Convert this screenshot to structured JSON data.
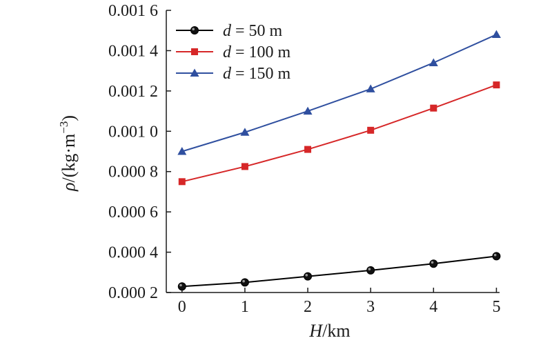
{
  "chart_data": {
    "type": "line",
    "x": [
      0,
      1,
      2,
      3,
      4,
      5
    ],
    "xlim": [
      -0.25,
      5.05
    ],
    "ylim": [
      0.0002,
      0.0016
    ],
    "xticks": [
      "0",
      "1",
      "2",
      "3",
      "4",
      "5"
    ],
    "yticks": [
      "0.000 2",
      "0.000 4",
      "0.000 6",
      "0.000 8",
      "0.001 0",
      "0.001 2",
      "0.001 4",
      "0.001 6"
    ],
    "ytick_values": [
      0.0002,
      0.0004,
      0.0006,
      0.0008,
      0.001,
      0.0012,
      0.0014,
      0.0016
    ],
    "xlabel": "H/km",
    "ylabel": "ρ/(kg·m⁻³)",
    "grid": false,
    "legend_position": "top-left",
    "series": [
      {
        "name": "d = 50 m",
        "name_var": "d",
        "name_rest": " = 50 m",
        "color": "#000000",
        "marker": "circle",
        "values": [
          0.00023,
          0.00025,
          0.00028,
          0.00031,
          0.000343,
          0.00038
        ]
      },
      {
        "name": "d = 100 m",
        "name_var": "d",
        "name_rest": " = 100 m",
        "color": "#d62728",
        "marker": "square",
        "values": [
          0.00075,
          0.000825,
          0.00091,
          0.001005,
          0.001115,
          0.00123
        ]
      },
      {
        "name": "d = 150 m",
        "name_var": "d",
        "name_rest": " = 150 m",
        "color": "#2f4f9f",
        "marker": "triangle",
        "values": [
          0.0009,
          0.000995,
          0.0011,
          0.00121,
          0.00134,
          0.00148
        ]
      }
    ]
  }
}
